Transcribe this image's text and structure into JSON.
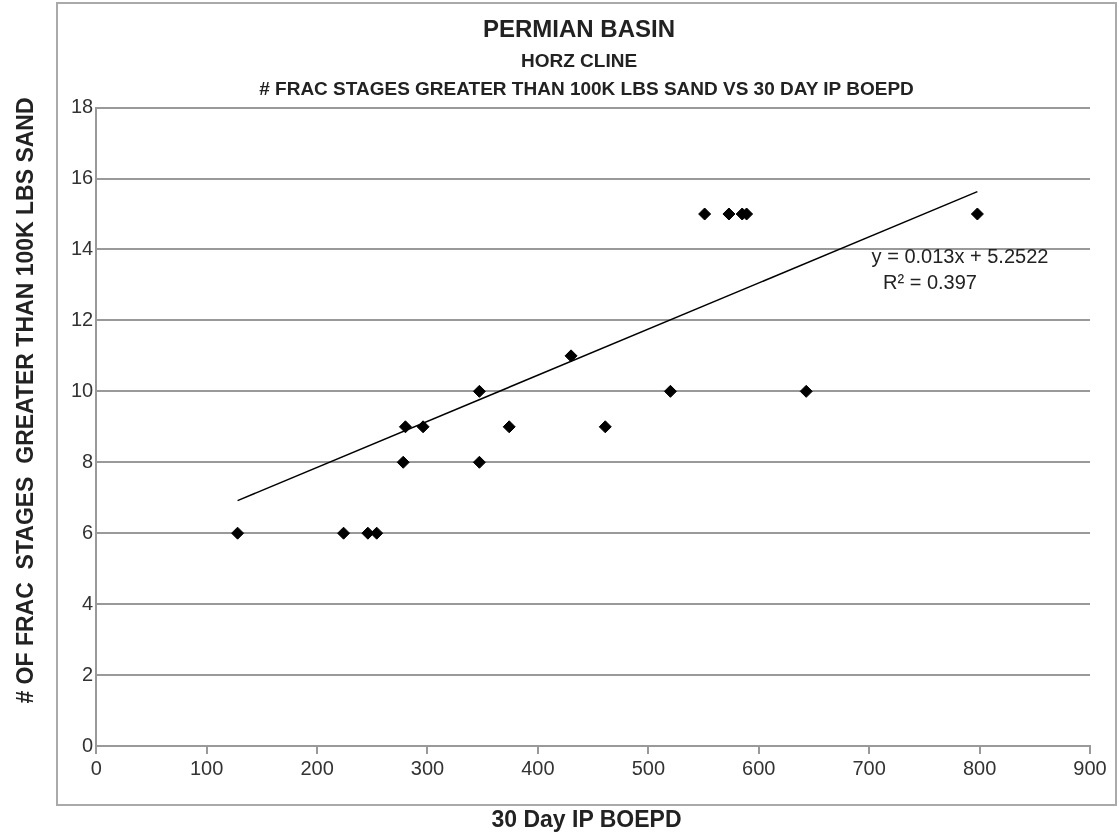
{
  "chart_data": {
    "type": "scatter",
    "title": "PERMIAN BASIN",
    "subtitle": "HORZ CLINE",
    "xlabel": "30 Day IP BOEPD",
    "ylabel": "# OF FRAC  STAGES  GREATER THAN 100K LBS SAND",
    "annotations": [
      "# FRAC STAGES GREATER THAN 100K LBS SAND VS 30 DAY IP BOEPD",
      "y = 0.013x + 5.2522",
      "R² = 0.397"
    ],
    "xlim": [
      0,
      900
    ],
    "xticks": [
      0,
      100,
      200,
      300,
      400,
      500,
      600,
      700,
      800,
      900
    ],
    "ylim": [
      0,
      18
    ],
    "yticks": [
      0,
      2,
      4,
      6,
      8,
      10,
      12,
      14,
      16,
      18
    ],
    "grid": "y",
    "legend": false,
    "marker": "diamond",
    "series": [
      {
        "color": "#000000",
        "x": [
          128,
          224,
          246,
          254,
          278,
          280,
          296,
          347,
          347,
          374,
          430,
          461,
          520,
          551,
          573,
          585,
          589,
          643,
          798
        ],
        "values": [
          6,
          6,
          6,
          6,
          8,
          9,
          9,
          10,
          8,
          9,
          11,
          9,
          10,
          15,
          15,
          15,
          15,
          10,
          15
        ]
      },
      {
        "type": "line",
        "color": "#000000",
        "marker": "none",
        "x": [
          128,
          798
        ],
        "values": [
          6.92,
          15.63
        ]
      }
    ]
  }
}
